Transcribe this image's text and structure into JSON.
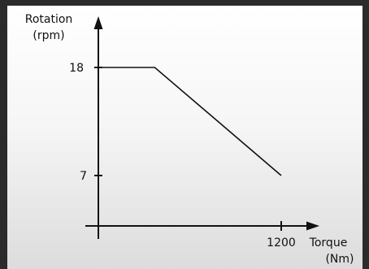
{
  "chart_data": {
    "type": "line",
    "ylabel_line1": "Rotation",
    "ylabel_line2": "(rpm)",
    "xlabel_line1": "Torque",
    "xlabel_line2": "(Nm)",
    "y_ticks": [
      18,
      7
    ],
    "x_ticks": [
      1200
    ],
    "x_ticks_labels": [
      "1200"
    ],
    "y_ticks_labels": [
      "18",
      "7"
    ],
    "series": [
      {
        "x": [
          0,
          370,
          1200
        ],
        "y": [
          18,
          18,
          7
        ]
      }
    ],
    "xlim": [
      0,
      1200
    ],
    "ylim": [
      0,
      18
    ],
    "grid": false,
    "colors": {
      "line": "#111111",
      "axis": "#111111",
      "background_top": "#ffffff",
      "background_bottom": "#dcdcdc"
    }
  }
}
